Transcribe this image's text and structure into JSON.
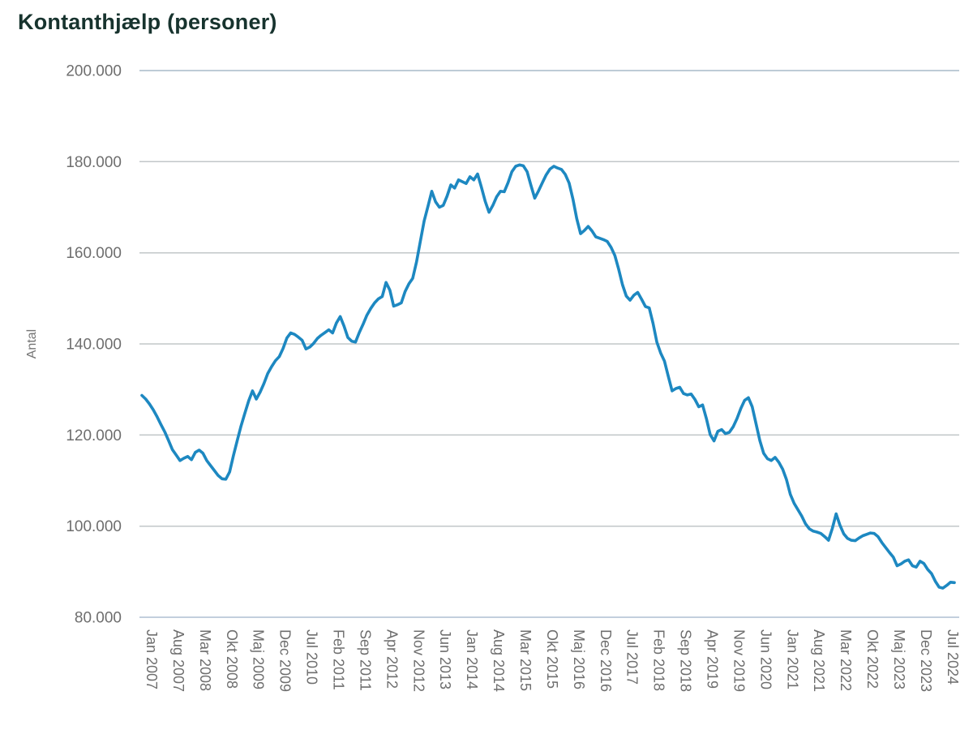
{
  "chart": {
    "title": "Kontanthjælp (personer)",
    "ylabel": "Antal"
  },
  "chart_data": {
    "type": "line",
    "title": "Kontanthjælp (personer)",
    "ylabel": "Antal",
    "xlabel": "",
    "grid": true,
    "legend": "none",
    "x_frequency": "monthly",
    "x_start": "Jan 2007",
    "x_end": "Okt 2024",
    "ylim": [
      80000,
      200000
    ],
    "y_tick_values": [
      80000,
      100000,
      120000,
      140000,
      160000,
      180000,
      200000
    ],
    "y_tick_labels": [
      "80.000",
      "100.000",
      "120.000",
      "140.000",
      "160.000",
      "180.000",
      "200.000"
    ],
    "x_tick_every_n_months": 7,
    "x_tick_labels": [
      "Jan 2007",
      "Aug 2007",
      "Mar 2008",
      "Okt 2008",
      "Maj 2009",
      "Dec 2009",
      "Jul 2010",
      "Feb 2011",
      "Sep 2011",
      "Apr 2012",
      "Nov 2012",
      "Jun 2013",
      "Jan 2014",
      "Aug 2014",
      "Mar 2015",
      "Okt 2015",
      "Maj 2016",
      "Dec 2016",
      "Jul 2017",
      "Feb 2018",
      "Sep 2018",
      "Apr 2019",
      "Nov 2019",
      "Jun 2020",
      "Jan 2021",
      "Aug 2021",
      "Mar 2022",
      "Okt 2022",
      "Maj 2023",
      "Dec 2023",
      "Jul 2024"
    ],
    "line_color": "#1d88c1",
    "grid_color": "#c2c7c9",
    "top_grid_color": "#a9bac8",
    "bottom_grid_color": "#aebfd2",
    "values": [
      128700,
      127900,
      126800,
      125500,
      124000,
      122300,
      120700,
      118800,
      116800,
      115600,
      114400,
      114900,
      115300,
      114600,
      116200,
      116700,
      116000,
      114400,
      113300,
      112200,
      111100,
      110400,
      110300,
      111900,
      115500,
      118800,
      122000,
      124800,
      127500,
      129700,
      127900,
      129400,
      131300,
      133500,
      135000,
      136300,
      137200,
      139000,
      141300,
      142400,
      142100,
      141500,
      140800,
      138900,
      139300,
      140100,
      141200,
      141900,
      142500,
      143100,
      142400,
      144600,
      146000,
      143900,
      141400,
      140600,
      140400,
      142500,
      144300,
      146300,
      147800,
      149000,
      149900,
      150400,
      153500,
      151800,
      148300,
      148600,
      149000,
      151500,
      153200,
      154400,
      158000,
      162500,
      167000,
      170200,
      173500,
      171200,
      170000,
      170400,
      172400,
      174900,
      174200,
      176000,
      175600,
      175200,
      176700,
      176000,
      177300,
      174400,
      171300,
      168900,
      170400,
      172300,
      173500,
      173400,
      175400,
      177800,
      179000,
      179300,
      179100,
      177800,
      174800,
      172000,
      173600,
      175400,
      177100,
      178400,
      179000,
      178600,
      178300,
      177200,
      175300,
      171800,
      167500,
      164200,
      164900,
      165800,
      164800,
      163500,
      163200,
      162900,
      162500,
      161200,
      159400,
      156400,
      153000,
      150500,
      149600,
      150700,
      151300,
      149800,
      148200,
      147900,
      144500,
      140400,
      138000,
      136200,
      132900,
      129700,
      130200,
      130500,
      129100,
      128800,
      129000,
      127800,
      126200,
      126600,
      123600,
      120100,
      118700,
      120800,
      121200,
      120300,
      120600,
      121800,
      123600,
      125800,
      127600,
      128200,
      126200,
      122500,
      118800,
      116000,
      114800,
      114400,
      115100,
      114000,
      112500,
      110200,
      107000,
      105000,
      103600,
      102200,
      100500,
      99400,
      98900,
      98700,
      98400,
      97700,
      96900,
      99500,
      102700,
      100200,
      98300,
      97300,
      96900,
      96800,
      97400,
      97900,
      98200,
      98500,
      98400,
      97700,
      96400,
      95300,
      94200,
      93200,
      91300,
      91700,
      92300,
      92600,
      91300,
      91000,
      92300,
      91800,
      90500,
      89600,
      87900,
      86600,
      86400,
      87000,
      87700,
      87600
    ]
  }
}
